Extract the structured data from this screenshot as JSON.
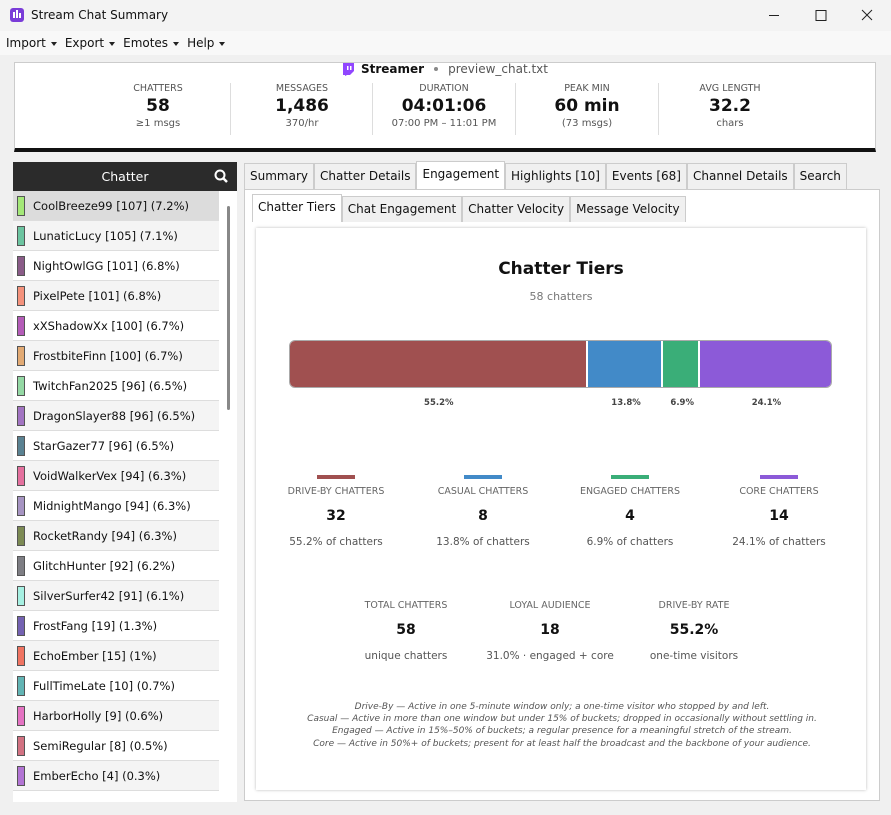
{
  "window": {
    "title": "Stream Chat Summary"
  },
  "menu": [
    "Import",
    "Export",
    "Emotes",
    "Help"
  ],
  "header": {
    "streamer": "Streamer",
    "file": "preview_chat.txt",
    "stats": [
      {
        "label": "CHATTERS",
        "value": "58",
        "sub": "≥1 msgs"
      },
      {
        "label": "MESSAGES",
        "value": "1,486",
        "sub": "370/hr"
      },
      {
        "label": "DURATION",
        "value": "04:01:06",
        "sub": "07:00 PM – 11:01 PM"
      },
      {
        "label": "PEAK MIN",
        "value": "60 min",
        "sub": "(73 msgs)"
      },
      {
        "label": "AVG LENGTH",
        "value": "32.2",
        "sub": "chars"
      }
    ]
  },
  "sidebar": {
    "title": "Chatter",
    "chatters": [
      {
        "label": "CoolBreeze99 [107] (7.2%)",
        "color": "#a4e878"
      },
      {
        "label": "LunaticLucy [105] (7.1%)",
        "color": "#6cc4a0"
      },
      {
        "label": "NightOwlGG [101] (6.8%)",
        "color": "#8a5c88"
      },
      {
        "label": "PixelPete [101] (6.8%)",
        "color": "#f4927c"
      },
      {
        "label": "xXShadowXx [100] (6.7%)",
        "color": "#b45cb8"
      },
      {
        "label": "FrostbiteFinn [100] (6.7%)",
        "color": "#e2aa74"
      },
      {
        "label": "TwitchFan2025 [96] (6.5%)",
        "color": "#94d8a4"
      },
      {
        "label": "DragonSlayer88 [96] (6.5%)",
        "color": "#a274c2"
      },
      {
        "label": "StarGazer77 [96] (6.5%)",
        "color": "#5a8292"
      },
      {
        "label": "VoidWalkerVex [94] (6.3%)",
        "color": "#e4709e"
      },
      {
        "label": "MidnightMango [94] (6.3%)",
        "color": "#a694c2"
      },
      {
        "label": "RocketRandy [94] (6.3%)",
        "color": "#7c8a54"
      },
      {
        "label": "GlitchHunter [92] (6.2%)",
        "color": "#7e7e84"
      },
      {
        "label": "SilverSurfer42 [91] (6.1%)",
        "color": "#a6f0e2"
      },
      {
        "label": "FrostFang [19] (1.3%)",
        "color": "#7462b2"
      },
      {
        "label": "EchoEmber [15] (1%)",
        "color": "#f07462"
      },
      {
        "label": "FullTimeLate [10] (0.7%)",
        "color": "#62b4b4"
      },
      {
        "label": "HarborHolly [9] (0.6%)",
        "color": "#e472c2"
      },
      {
        "label": "SemiRegular [8] (0.5%)",
        "color": "#d27282"
      },
      {
        "label": "EmberEcho [4] (0.3%)",
        "color": "#b274d4"
      }
    ]
  },
  "tabs": [
    "Summary",
    "Chatter Details",
    "Engagement",
    "Highlights [10]",
    "Events [68]",
    "Channel Details",
    "Search"
  ],
  "subtabs": [
    "Chatter Tiers",
    "Chat Engagement",
    "Chatter Velocity",
    "Message Velocity"
  ],
  "panel": {
    "title": "Chatter Tiers",
    "subtitle": "58 chatters",
    "tiers": [
      {
        "name": "DRIVE-BY CHATTERS",
        "count": 32,
        "percent": "55.2%",
        "share": "55.2% of chatters",
        "color": "#a05050"
      },
      {
        "name": "CASUAL CHATTERS",
        "count": 8,
        "percent": "13.8%",
        "share": "13.8% of chatters",
        "color": "#428ac8"
      },
      {
        "name": "ENGAGED CHATTERS",
        "count": 4,
        "percent": "6.9%",
        "share": "6.9% of chatters",
        "color": "#3aae78"
      },
      {
        "name": "CORE CHATTERS",
        "count": 14,
        "percent": "24.1%",
        "share": "24.1% of chatters",
        "color": "#8c5ad8"
      }
    ],
    "totals": [
      {
        "label": "TOTAL CHATTERS",
        "value": "58",
        "sub": "unique chatters"
      },
      {
        "label": "LOYAL AUDIENCE",
        "value": "18",
        "sub": "31.0% · engaged + core"
      },
      {
        "label": "DRIVE-BY RATE",
        "value": "55.2%",
        "sub": "one-time visitors"
      }
    ],
    "notes": [
      "Drive-By — Active in one 5-minute window only; a one-time visitor who stopped by and left.",
      "Casual — Active in more than one window but under 15% of buckets; dropped in occasionally without settling in.",
      "Engaged — Active in 15%–50% of buckets; a regular presence for a meaningful stretch of the stream.",
      "Core — Active in 50%+ of buckets; present for at least half the broadcast and the backbone of your audience."
    ]
  }
}
